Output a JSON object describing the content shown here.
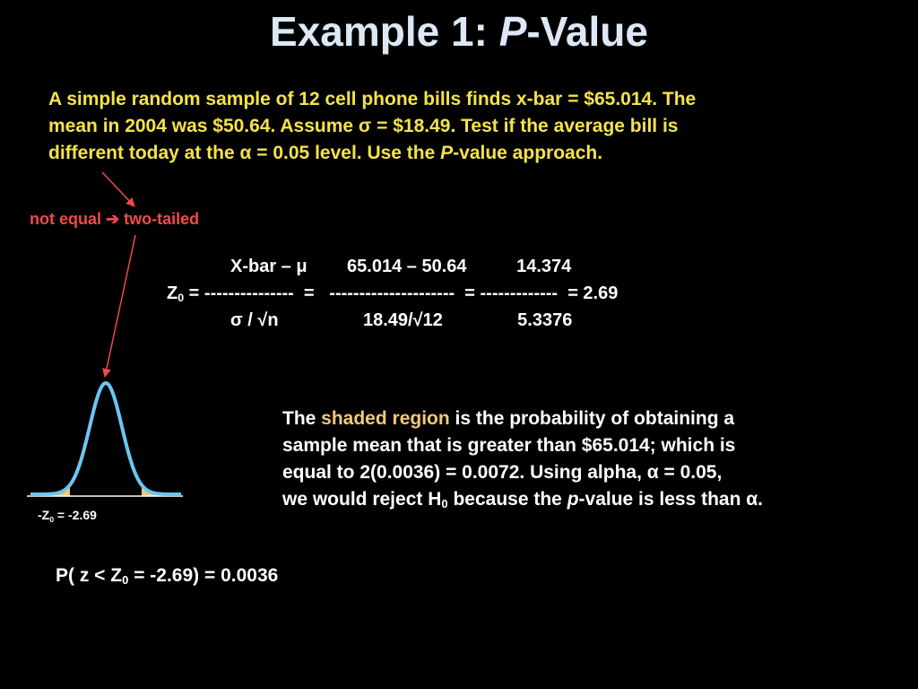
{
  "title": {
    "prefix": "Example 1: ",
    "italic": "P",
    "suffix": "-Value"
  },
  "problem": {
    "line1": "A simple random sample of 12 cell phone bills finds x-bar = $65.014.   The",
    "line2": "mean in 2004 was $50.64.  Assume σ = $18.49.  Test if the average bill is",
    "line3a": "different today at the α = 0.05 level.  Use the ",
    "line3i": "P",
    "line3b": "-value approach."
  },
  "note": {
    "left": "not equal",
    "arrow": "➔",
    "right": "two-tailed"
  },
  "formula": {
    "numerator": "X-bar – μ        65.014 – 50.64          14.374",
    "z_symbol": "Z",
    "z_sub": "0",
    "line": " = ---------------  =   ---------------------  = -------------  = 2.69",
    "denominator": "σ / √n                 18.49/√12               5.3376"
  },
  "explanation": {
    "l1a": "The ",
    "l1hl": "shaded region",
    "l1b": " is the probability of obtaining a",
    "l2": "sample mean that is greater than $65.014; which is",
    "l3": "equal to 2(0.0036) = 0.0072.  Using alpha, α = 0.05,",
    "l4a": "we would reject H",
    "l4sub": "0",
    "l4b": " because the ",
    "l4i": "p",
    "l4c": "-value is less than α."
  },
  "z_label": {
    "a": "-Z",
    "sub": "0",
    "b": " = -2.69"
  },
  "probability": {
    "a": "P( z < Z",
    "sub": "0",
    "b": " = -2.69) = 0.0036"
  },
  "colors": {
    "title": "#dce8f5",
    "problem_text": "#f5e34a",
    "note": "#f04a4a",
    "curve": "#6ec6f2",
    "shaded": "#f5c878",
    "highlight": "#f5c878"
  }
}
